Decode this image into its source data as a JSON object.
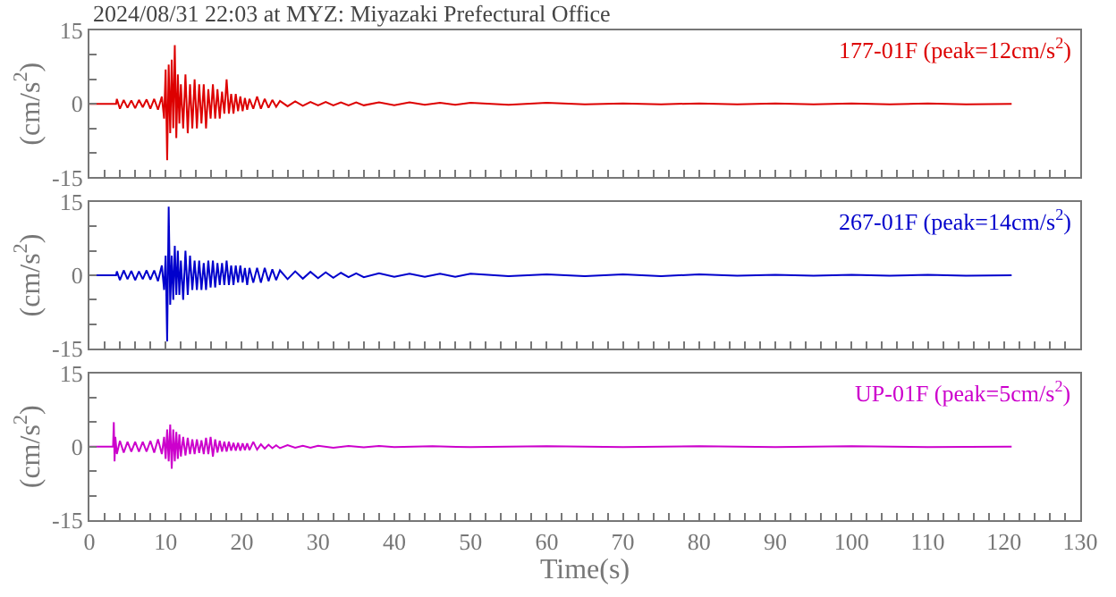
{
  "chart_data": [
    {
      "type": "line",
      "title": "2024/08/31 22:03 at MYZ: Miyazaki Prefectural Office",
      "ylabel": "(cm/s$^{2}$)",
      "annotations": [
        "177-01F (peak=12cm/s$^{2}$)"
      ],
      "tick_labels": "y",
      "marker": "none",
      "line_style": "solid",
      "xlim": [
        0,
        130
      ],
      "ylim": [
        -15,
        15
      ],
      "yticks": [
        -15,
        {
          "value": -10,
          "label": null
        },
        {
          "value": -5,
          "label": null
        },
        0,
        {
          "value": 5,
          "label": null
        },
        {
          "value": 10,
          "label": null
        },
        15
      ],
      "xticks": [
        0,
        {
          "value": 2,
          "label": null
        },
        {
          "value": 4,
          "label": null
        },
        {
          "value": 6,
          "label": null
        },
        {
          "value": 8,
          "label": null
        },
        10,
        {
          "value": 12,
          "label": null
        },
        {
          "value": 14,
          "label": null
        },
        {
          "value": 16,
          "label": null
        },
        {
          "value": 18,
          "label": null
        },
        20,
        {
          "value": 22,
          "label": null
        },
        {
          "value": 24,
          "label": null
        },
        {
          "value": 26,
          "label": null
        },
        {
          "value": 28,
          "label": null
        },
        30,
        {
          "value": 32,
          "label": null
        },
        {
          "value": 34,
          "label": null
        },
        {
          "value": 36,
          "label": null
        },
        {
          "value": 38,
          "label": null
        },
        40,
        {
          "value": 42,
          "label": null
        },
        {
          "value": 44,
          "label": null
        },
        {
          "value": 46,
          "label": null
        },
        {
          "value": 48,
          "label": null
        },
        50,
        {
          "value": 52,
          "label": null
        },
        {
          "value": 54,
          "label": null
        },
        {
          "value": 56,
          "label": null
        },
        {
          "value": 58,
          "label": null
        },
        60,
        {
          "value": 62,
          "label": null
        },
        {
          "value": 64,
          "label": null
        },
        {
          "value": 66,
          "label": null
        },
        {
          "value": 68,
          "label": null
        },
        70,
        {
          "value": 72,
          "label": null
        },
        {
          "value": 74,
          "label": null
        },
        {
          "value": 76,
          "label": null
        },
        {
          "value": 78,
          "label": null
        },
        80,
        {
          "value": 82,
          "label": null
        },
        {
          "value": 84,
          "label": null
        },
        {
          "value": 86,
          "label": null
        },
        {
          "value": 88,
          "label": null
        },
        90,
        {
          "value": 92,
          "label": null
        },
        {
          "value": 94,
          "label": null
        },
        {
          "value": 96,
          "label": null
        },
        {
          "value": 98,
          "label": null
        },
        100,
        {
          "value": 102,
          "label": null
        },
        {
          "value": 104,
          "label": null
        },
        {
          "value": 106,
          "label": null
        },
        {
          "value": 108,
          "label": null
        },
        110,
        {
          "value": 112,
          "label": null
        },
        {
          "value": 114,
          "label": null
        },
        {
          "value": 116,
          "label": null
        },
        {
          "value": 118,
          "label": null
        },
        120,
        {
          "value": 122,
          "label": null
        },
        {
          "value": 124,
          "label": null
        },
        {
          "value": 126,
          "label": null
        },
        {
          "value": 128,
          "label": null
        },
        130
      ],
      "series": [
        {
          "color": "#dd0000",
          "x": [
            0,
            3.5,
            3.6,
            4,
            4.5,
            5,
            5.5,
            6,
            6.5,
            7,
            7.5,
            8,
            8.5,
            9,
            9.5,
            9.8,
            10,
            10.2,
            10.4,
            10.6,
            10.8,
            11,
            11.2,
            11.4,
            11.6,
            11.8,
            12,
            12.3,
            12.6,
            12.9,
            13.2,
            13.5,
            13.8,
            14.1,
            14.4,
            14.7,
            15,
            15.3,
            15.6,
            15.9,
            16.2,
            16.5,
            16.8,
            17.1,
            17.4,
            17.7,
            18,
            18.3,
            18.6,
            18.9,
            19.2,
            19.5,
            19.8,
            20.1,
            20.4,
            20.7,
            21,
            21.5,
            22,
            22.5,
            23,
            23.5,
            24,
            24.5,
            25,
            26,
            27,
            28,
            29,
            30,
            31,
            32,
            33,
            34,
            35,
            36,
            38,
            40,
            42,
            44,
            46,
            48,
            50,
            55,
            60,
            65,
            70,
            75,
            80,
            85,
            90,
            95,
            100,
            105,
            110,
            115,
            121
          ],
          "values": [
            0,
            0,
            1,
            -1,
            0.8,
            -0.8,
            0.7,
            -0.9,
            0.8,
            -0.7,
            0.9,
            -1,
            1,
            -1.2,
            1.5,
            -3,
            7,
            -11.5,
            8,
            -6,
            9,
            -5,
            12,
            -7,
            6,
            -4,
            4,
            -5,
            6,
            -6,
            4,
            -5,
            5,
            -5,
            4,
            -4,
            4,
            -5,
            3,
            -3,
            4,
            -3,
            3,
            -3,
            2.5,
            -2,
            5,
            -2,
            2,
            -2,
            2,
            -1.5,
            1.5,
            -1.5,
            1.2,
            -1.2,
            1,
            -1,
            1.5,
            -1,
            1,
            -0.8,
            0.8,
            -0.6,
            0.6,
            -0.5,
            0.5,
            -0.4,
            0.4,
            -0.3,
            0.4,
            -0.3,
            0.3,
            -0.3,
            0.3,
            -0.3,
            0.3,
            -0.3,
            0.3,
            -0.2,
            0.2,
            -0.2,
            0.2,
            -0.2,
            0.2,
            -0.1,
            0.1,
            -0.1,
            0.1,
            -0.1,
            0.1,
            -0.1,
            0.1,
            -0.1,
            0.1,
            -0.1,
            0
          ]
        }
      ]
    },
    {
      "type": "line",
      "ylabel": "(cm/s$^{2}$)",
      "annotations": [
        "267-01F (peak=14cm/s$^{2}$)"
      ],
      "tick_labels": "y",
      "marker": "none",
      "line_style": "solid",
      "xlim": [
        0,
        130
      ],
      "ylim": [
        -15,
        15
      ],
      "yticks": [
        -15,
        {
          "value": -10,
          "label": null
        },
        {
          "value": -5,
          "label": null
        },
        0,
        {
          "value": 5,
          "label": null
        },
        {
          "value": 10,
          "label": null
        },
        15
      ],
      "xticks": [
        0,
        {
          "value": 2,
          "label": null
        },
        {
          "value": 4,
          "label": null
        },
        {
          "value": 6,
          "label": null
        },
        {
          "value": 8,
          "label": null
        },
        10,
        {
          "value": 12,
          "label": null
        },
        {
          "value": 14,
          "label": null
        },
        {
          "value": 16,
          "label": null
        },
        {
          "value": 18,
          "label": null
        },
        20,
        {
          "value": 22,
          "label": null
        },
        {
          "value": 24,
          "label": null
        },
        {
          "value": 26,
          "label": null
        },
        {
          "value": 28,
          "label": null
        },
        30,
        {
          "value": 32,
          "label": null
        },
        {
          "value": 34,
          "label": null
        },
        {
          "value": 36,
          "label": null
        },
        {
          "value": 38,
          "label": null
        },
        40,
        {
          "value": 42,
          "label": null
        },
        {
          "value": 44,
          "label": null
        },
        {
          "value": 46,
          "label": null
        },
        {
          "value": 48,
          "label": null
        },
        50,
        {
          "value": 52,
          "label": null
        },
        {
          "value": 54,
          "label": null
        },
        {
          "value": 56,
          "label": null
        },
        {
          "value": 58,
          "label": null
        },
        60,
        {
          "value": 62,
          "label": null
        },
        {
          "value": 64,
          "label": null
        },
        {
          "value": 66,
          "label": null
        },
        {
          "value": 68,
          "label": null
        },
        70,
        {
          "value": 72,
          "label": null
        },
        {
          "value": 74,
          "label": null
        },
        {
          "value": 76,
          "label": null
        },
        {
          "value": 78,
          "label": null
        },
        80,
        {
          "value": 82,
          "label": null
        },
        {
          "value": 84,
          "label": null
        },
        {
          "value": 86,
          "label": null
        },
        {
          "value": 88,
          "label": null
        },
        90,
        {
          "value": 92,
          "label": null
        },
        {
          "value": 94,
          "label": null
        },
        {
          "value": 96,
          "label": null
        },
        {
          "value": 98,
          "label": null
        },
        100,
        {
          "value": 102,
          "label": null
        },
        {
          "value": 104,
          "label": null
        },
        {
          "value": 106,
          "label": null
        },
        {
          "value": 108,
          "label": null
        },
        110,
        {
          "value": 112,
          "label": null
        },
        {
          "value": 114,
          "label": null
        },
        {
          "value": 116,
          "label": null
        },
        {
          "value": 118,
          "label": null
        },
        120,
        {
          "value": 122,
          "label": null
        },
        {
          "value": 124,
          "label": null
        },
        {
          "value": 126,
          "label": null
        },
        {
          "value": 128,
          "label": null
        },
        130
      ],
      "series": [
        {
          "color": "#0000cc",
          "x": [
            0,
            3.5,
            3.6,
            4,
            4.5,
            5,
            5.5,
            6,
            6.5,
            7,
            7.5,
            8,
            8.5,
            9,
            9.5,
            9.8,
            10,
            10.2,
            10.4,
            10.6,
            10.8,
            11,
            11.2,
            11.4,
            11.6,
            11.8,
            12,
            12.3,
            12.6,
            12.9,
            13.2,
            13.5,
            13.8,
            14.1,
            14.4,
            14.7,
            15,
            15.3,
            15.6,
            15.9,
            16.2,
            16.5,
            16.8,
            17.1,
            17.4,
            17.7,
            18,
            18.3,
            18.6,
            18.9,
            19.2,
            19.5,
            19.8,
            20.1,
            20.4,
            20.7,
            21,
            21.5,
            22,
            22.5,
            23,
            23.5,
            24,
            24.5,
            25,
            26,
            27,
            28,
            29,
            30,
            31,
            32,
            33,
            34,
            35,
            36,
            38,
            40,
            42,
            44,
            46,
            48,
            50,
            55,
            60,
            65,
            70,
            75,
            80,
            85,
            90,
            95,
            100,
            105,
            110,
            115,
            121
          ],
          "values": [
            0,
            0,
            0.8,
            -1,
            1,
            -0.8,
            0.9,
            -1,
            0.8,
            -0.8,
            1,
            -0.9,
            1,
            -1.2,
            2,
            -3,
            4,
            -13.5,
            14,
            -6,
            4,
            -5,
            6,
            -4,
            5,
            -4,
            3,
            -5,
            5,
            -4,
            4,
            -3,
            3,
            -3,
            3,
            -3,
            2.5,
            -3,
            3,
            -2.5,
            3,
            -2.5,
            2.5,
            -2,
            2.5,
            -2,
            3,
            -2,
            2,
            -2,
            2,
            -1.5,
            2,
            -1.5,
            1.5,
            -2,
            1.5,
            -1.5,
            1.5,
            -1.5,
            1.5,
            -1.2,
            1.2,
            -1,
            1,
            -0.8,
            0.8,
            -0.7,
            0.7,
            -0.6,
            0.6,
            -0.5,
            0.5,
            -0.4,
            0.4,
            -0.4,
            0.4,
            -0.3,
            0.3,
            -0.3,
            0.3,
            -0.3,
            0.3,
            -0.2,
            0.2,
            -0.2,
            0.2,
            -0.2,
            0.2,
            -0.1,
            0.1,
            -0.1,
            0.1,
            -0.1,
            0.1,
            -0.1,
            0
          ]
        }
      ]
    },
    {
      "type": "line",
      "ylabel": "(cm/s$^{2}$)",
      "xlabel": "Time(s)",
      "annotations": [
        "UP-01F (peak=5cm/s$^{2}$)"
      ],
      "marker": "none",
      "line_style": "solid",
      "xlim": [
        0,
        130
      ],
      "ylim": [
        -15,
        15
      ],
      "yticks": [
        -15,
        {
          "value": -10,
          "label": null
        },
        {
          "value": -5,
          "label": null
        },
        0,
        {
          "value": 5,
          "label": null
        },
        {
          "value": 10,
          "label": null
        },
        15
      ],
      "xticks": [
        0,
        {
          "value": 2,
          "label": null
        },
        {
          "value": 4,
          "label": null
        },
        {
          "value": 6,
          "label": null
        },
        {
          "value": 8,
          "label": null
        },
        10,
        {
          "value": 12,
          "label": null
        },
        {
          "value": 14,
          "label": null
        },
        {
          "value": 16,
          "label": null
        },
        {
          "value": 18,
          "label": null
        },
        20,
        {
          "value": 22,
          "label": null
        },
        {
          "value": 24,
          "label": null
        },
        {
          "value": 26,
          "label": null
        },
        {
          "value": 28,
          "label": null
        },
        30,
        {
          "value": 32,
          "label": null
        },
        {
          "value": 34,
          "label": null
        },
        {
          "value": 36,
          "label": null
        },
        {
          "value": 38,
          "label": null
        },
        40,
        {
          "value": 42,
          "label": null
        },
        {
          "value": 44,
          "label": null
        },
        {
          "value": 46,
          "label": null
        },
        {
          "value": 48,
          "label": null
        },
        50,
        {
          "value": 52,
          "label": null
        },
        {
          "value": 54,
          "label": null
        },
        {
          "value": 56,
          "label": null
        },
        {
          "value": 58,
          "label": null
        },
        60,
        {
          "value": 62,
          "label": null
        },
        {
          "value": 64,
          "label": null
        },
        {
          "value": 66,
          "label": null
        },
        {
          "value": 68,
          "label": null
        },
        70,
        {
          "value": 72,
          "label": null
        },
        {
          "value": 74,
          "label": null
        },
        {
          "value": 76,
          "label": null
        },
        {
          "value": 78,
          "label": null
        },
        80,
        {
          "value": 82,
          "label": null
        },
        {
          "value": 84,
          "label": null
        },
        {
          "value": 86,
          "label": null
        },
        {
          "value": 88,
          "label": null
        },
        90,
        {
          "value": 92,
          "label": null
        },
        {
          "value": 94,
          "label": null
        },
        {
          "value": 96,
          "label": null
        },
        {
          "value": 98,
          "label": null
        },
        100,
        {
          "value": 102,
          "label": null
        },
        {
          "value": 104,
          "label": null
        },
        {
          "value": 106,
          "label": null
        },
        {
          "value": 108,
          "label": null
        },
        110,
        {
          "value": 112,
          "label": null
        },
        {
          "value": 114,
          "label": null
        },
        {
          "value": 116,
          "label": null
        },
        {
          "value": 118,
          "label": null
        },
        120,
        {
          "value": 122,
          "label": null
        },
        {
          "value": 124,
          "label": null
        },
        {
          "value": 126,
          "label": null
        },
        {
          "value": 128,
          "label": null
        },
        130
      ],
      "series": [
        {
          "color": "#cc00cc",
          "x": [
            0,
            3.1,
            3.2,
            3.3,
            3.4,
            3.6,
            4,
            4.5,
            5,
            5.5,
            6,
            6.5,
            7,
            7.5,
            8,
            8.5,
            9,
            9.5,
            9.8,
            10,
            10.2,
            10.4,
            10.6,
            10.8,
            11,
            11.2,
            11.4,
            11.6,
            11.8,
            12,
            12.3,
            12.6,
            12.9,
            13.2,
            13.5,
            13.8,
            14.1,
            14.4,
            14.7,
            15,
            15.3,
            15.6,
            15.9,
            16.2,
            16.5,
            16.8,
            17.1,
            17.4,
            17.7,
            18,
            18.3,
            18.6,
            18.9,
            19.2,
            19.5,
            19.8,
            20.1,
            20.4,
            20.7,
            21,
            21.5,
            22,
            22.5,
            23,
            23.5,
            24,
            24.5,
            25,
            26,
            27,
            28,
            29,
            30,
            32,
            34,
            36,
            38,
            40,
            45,
            50,
            60,
            70,
            80,
            90,
            100,
            110,
            121
          ],
          "values": [
            0,
            0,
            5,
            -3,
            2,
            -1.5,
            1.2,
            -1.2,
            1,
            -1,
            1,
            -1,
            1,
            -1,
            1.2,
            -1.2,
            1.5,
            -1.5,
            2,
            -2.5,
            3.5,
            -3,
            4.5,
            -4.5,
            3.5,
            -3,
            3,
            -2.5,
            2.5,
            -2,
            2,
            -1.8,
            1.8,
            -1.5,
            1.5,
            -1.5,
            1.5,
            -1.3,
            1.3,
            -1.5,
            1.8,
            -1.5,
            2,
            -2,
            1.5,
            -1.2,
            1.2,
            -1,
            1,
            -1,
            1,
            -0.8,
            0.8,
            -0.8,
            0.8,
            -0.8,
            0.7,
            -0.7,
            0.7,
            -0.7,
            1,
            -0.6,
            0.5,
            -0.4,
            0.4,
            -0.3,
            0.3,
            -0.3,
            0.3,
            -0.2,
            0.2,
            -0.2,
            0.2,
            -0.2,
            0.15,
            -0.15,
            0.15,
            -0.1,
            0.1,
            -0.1,
            0.1,
            -0.1,
            0.1,
            -0.1,
            0.1,
            -0.1,
            0
          ]
        }
      ]
    }
  ]
}
